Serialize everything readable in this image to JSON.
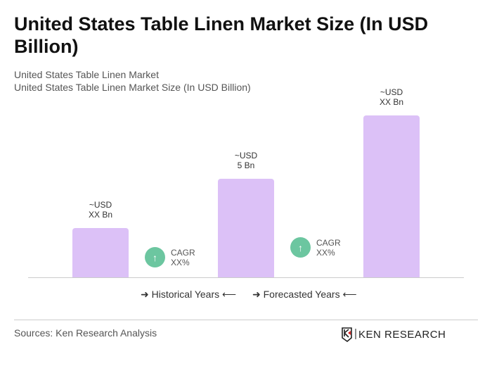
{
  "title": "United States Table Linen Market Size (In USD Billion)",
  "subtitle1": "United States Table Linen Market",
  "subtitle2": "United States Table Linen Market Size (In USD Billion)",
  "chart_data": {
    "type": "bar",
    "values": [
      2.5,
      5,
      8.2
    ],
    "data_labels": [
      [
        "~USD",
        "XX Bn"
      ],
      [
        "~USD",
        "5 Bn"
      ],
      [
        "~USD",
        "XX Bn"
      ]
    ],
    "bar_color": "#dcc1f7",
    "cagr": [
      {
        "label": "CAGR",
        "value": "XX%"
      },
      {
        "label": "CAGR",
        "value": "XX%"
      }
    ],
    "cagr_color": "#6cc6a0",
    "legend": [
      "Historical Years",
      "Forecasted Years"
    ],
    "grid": false
  },
  "sources": "Sources: Ken Research Analysis",
  "logo_text": "KEN RESEARCH"
}
